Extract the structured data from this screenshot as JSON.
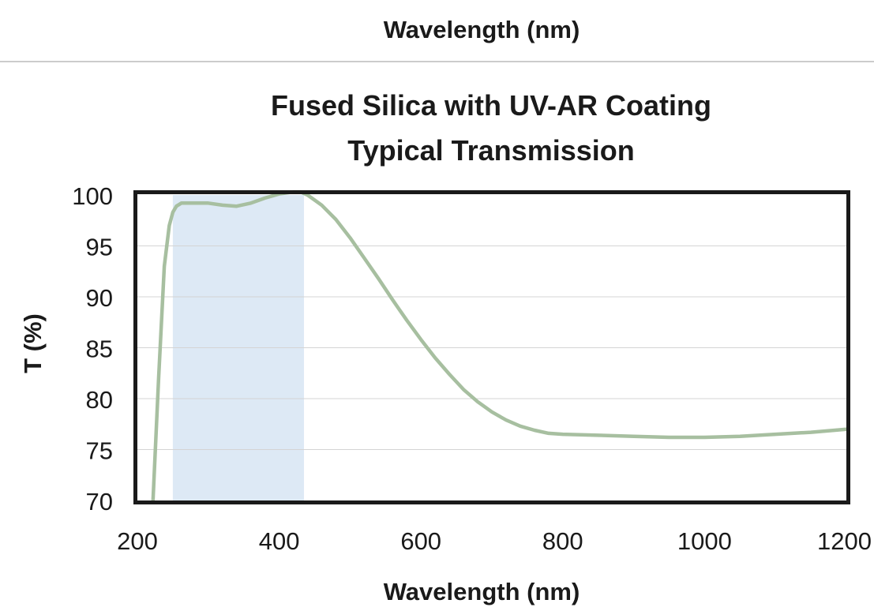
{
  "header": {
    "prev_xlabel": "Wavelength (nm)"
  },
  "chart_data": {
    "type": "line",
    "title": "Fused Silica with UV-AR Coating",
    "subtitle": "Typical Transmission",
    "xlabel": "Wavelength (nm)",
    "ylabel": "T (%)",
    "xlim": [
      200,
      1200
    ],
    "ylim": [
      70,
      100
    ],
    "xticks": [
      200,
      400,
      600,
      800,
      1000,
      1200
    ],
    "yticks": [
      70,
      75,
      80,
      85,
      90,
      95,
      100
    ],
    "grid": true,
    "highlight_band": [
      250,
      435
    ],
    "highlight_color": "#dde9f5",
    "series": [
      {
        "color": "#a7bfa0",
        "x": [
          222,
          230,
          238,
          245,
          250,
          255,
          262,
          280,
          300,
          320,
          340,
          360,
          380,
          400,
          420,
          430,
          440,
          460,
          480,
          500,
          520,
          540,
          560,
          580,
          600,
          620,
          640,
          660,
          680,
          700,
          720,
          740,
          760,
          780,
          800,
          850,
          900,
          950,
          1000,
          1050,
          1100,
          1150,
          1200
        ],
        "values": [
          70.0,
          82.0,
          93.0,
          97.0,
          98.3,
          98.9,
          99.2,
          99.2,
          99.2,
          99.0,
          98.9,
          99.2,
          99.7,
          100.1,
          100.3,
          100.3,
          100.0,
          99.0,
          97.6,
          95.8,
          93.8,
          91.8,
          89.7,
          87.7,
          85.8,
          84.0,
          82.4,
          80.9,
          79.7,
          78.7,
          77.9,
          77.3,
          76.9,
          76.6,
          76.5,
          76.4,
          76.3,
          76.2,
          76.2,
          76.3,
          76.5,
          76.7,
          77.0
        ]
      }
    ]
  }
}
